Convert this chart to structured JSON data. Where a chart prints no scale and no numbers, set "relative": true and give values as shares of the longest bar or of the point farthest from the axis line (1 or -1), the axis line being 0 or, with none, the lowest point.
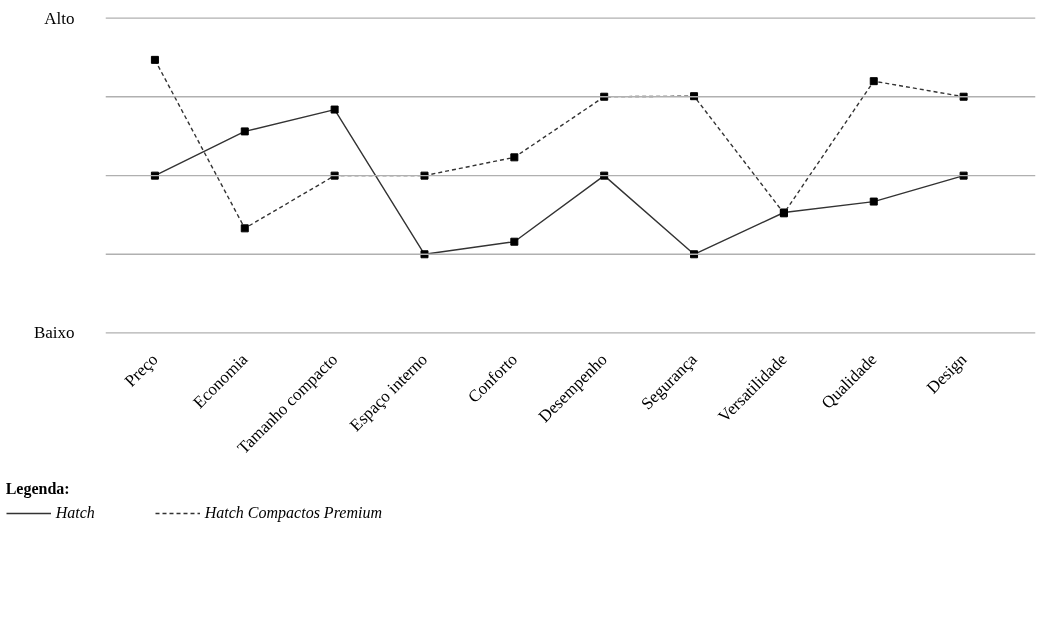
{
  "chart_data": {
    "type": "line",
    "relative": true,
    "categories": [
      "Preço",
      "Economia",
      "Tamanho compacto",
      "Espaço interno",
      "Conforto",
      "Desempenho",
      "Segurança",
      "Versatilidade",
      "Qualidade",
      "Design"
    ],
    "series": [
      {
        "name": "Hatch",
        "color": "#333333",
        "line_style": "solid",
        "values": [
          0.576,
          0.738,
          0.818,
          0.288,
          0.334,
          0.576,
          0.288,
          0.441,
          0.481,
          0.576
        ]
      },
      {
        "name": "Hatch Compactos Premium",
        "color": "#333333",
        "line_style": "dashed",
        "values": [
          1,
          0.383,
          0.576,
          0.576,
          0.643,
          0.865,
          0.867,
          0.438,
          0.922,
          0.865
        ]
      }
    ],
    "ref_lines": [
      {
        "axis": "y",
        "value": 0,
        "label": "Baixo",
        "color": "#b0b0b0"
      },
      {
        "axis": "y",
        "value": 0.288,
        "color": "#b0b0b0"
      },
      {
        "axis": "y",
        "value": 0.576,
        "color": "#b0b0b0"
      },
      {
        "axis": "y",
        "value": 0.865,
        "color": "#b0b0b0"
      },
      {
        "axis": "y",
        "value": 1.153,
        "label": "Alto",
        "color": "#b0b0b0"
      }
    ],
    "marker": "square",
    "legend": "bottom",
    "legend_title": "Legenda:"
  }
}
